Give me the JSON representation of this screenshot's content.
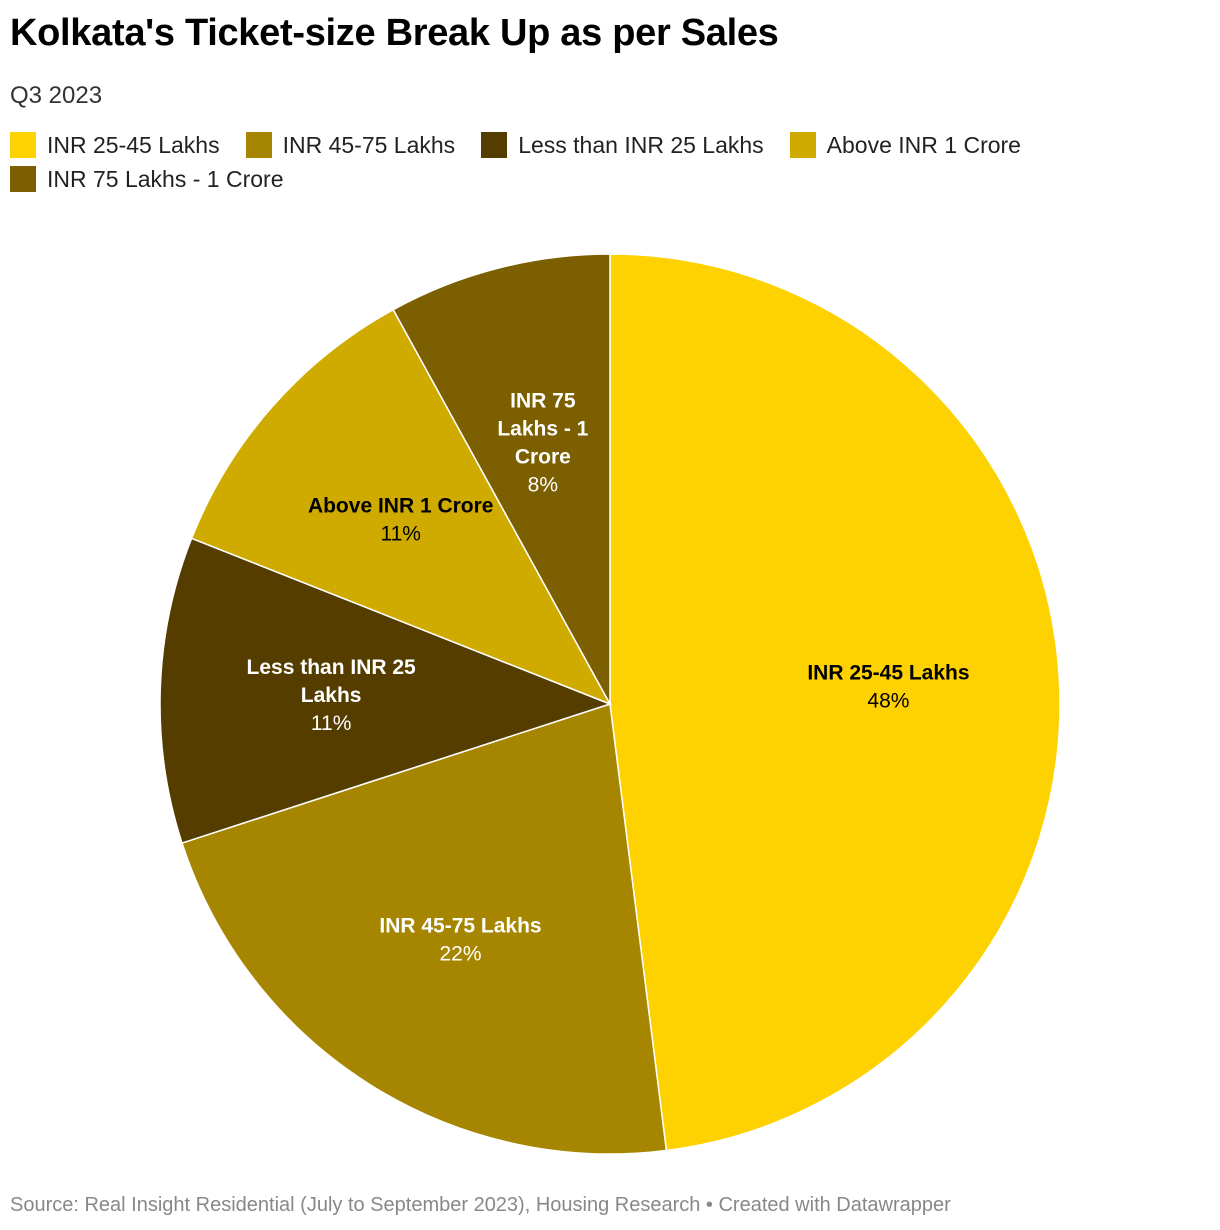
{
  "chart_data": {
    "type": "pie",
    "title": "Kolkata's Ticket-size Break Up as per Sales",
    "subtitle": "Q3 2023",
    "legend_position": "top-left",
    "slices": [
      {
        "label": "INR 25-45 Lakhs",
        "value": 48,
        "value_label": "48%",
        "color": "#fed100",
        "text_color": "#000000",
        "label_lines": [
          "INR 25-45 Lakhs"
        ]
      },
      {
        "label": "INR 45-75 Lakhs",
        "value": 22,
        "value_label": "22%",
        "color": "#a68600",
        "text_color": "#ffffff",
        "label_lines": [
          "INR 45-75 Lakhs"
        ]
      },
      {
        "label": "Less than INR 25 Lakhs",
        "value": 11,
        "value_label": "11%",
        "color": "#553d00",
        "text_color": "#ffffff",
        "label_lines": [
          "Less than INR 25",
          "Lakhs"
        ]
      },
      {
        "label": "Above INR 1 Crore",
        "value": 11,
        "value_label": "11%",
        "color": "#cfab00",
        "text_color": "#000000",
        "label_lines": [
          "Above INR 1 Crore"
        ]
      },
      {
        "label": "INR 75 Lakhs - 1 Crore",
        "value": 8,
        "value_label": "8%",
        "color": "#7c5f00",
        "text_color": "#ffffff",
        "label_lines": [
          "INR 75",
          "Lakhs - 1",
          "Crore"
        ]
      }
    ]
  },
  "legend": [
    {
      "label": "INR 25-45 Lakhs",
      "color": "#fed100"
    },
    {
      "label": "INR 45-75 Lakhs",
      "color": "#a68600"
    },
    {
      "label": "Less than INR 25 Lakhs",
      "color": "#553d00"
    },
    {
      "label": "Above INR 1 Crore",
      "color": "#cfab00"
    },
    {
      "label": "INR 75 Lakhs - 1 Crore",
      "color": "#7c5f00"
    }
  ],
  "footer": "Source: Real Insight Residential (July to September 2023), Housing Research • Created with Datawrapper"
}
